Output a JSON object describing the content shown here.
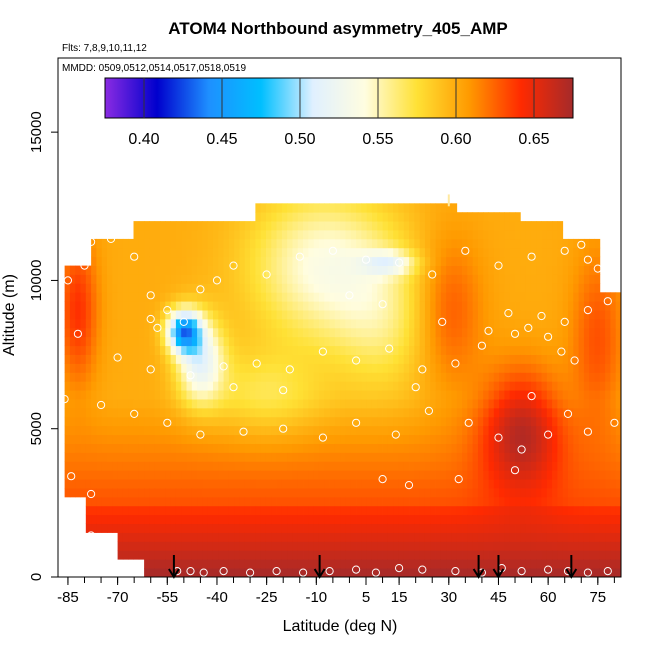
{
  "chart_data": {
    "type": "heatmap",
    "title": "ATOM4 Northbound asymmetry_405_AMP",
    "subtitle_flights": "Flts: 7,8,9,10,11,12",
    "subtitle_dates": "MMDD: 0509,0512,0514,0517,0518,0519",
    "xlabel": "Latitude (deg N)",
    "ylabel": "Altitude (m)",
    "xlim": [
      -88,
      82
    ],
    "ylim": [
      0,
      17500
    ],
    "x_ticks": [
      -85,
      -70,
      -55,
      -40,
      -25,
      -10,
      5,
      15,
      30,
      45,
      60,
      75
    ],
    "y_ticks": [
      0,
      5000,
      10000,
      15000
    ],
    "colorbar": {
      "range": [
        0.375,
        0.675
      ],
      "ticks": [
        0.4,
        0.45,
        0.5,
        0.55,
        0.6,
        0.65
      ],
      "tick_labels": [
        "0.40",
        "0.45",
        "0.50",
        "0.55",
        "0.60",
        "0.65"
      ],
      "colors": [
        "#8a2be2",
        "#0000cd",
        "#1e90ff",
        "#00bfff",
        "#e0f0ff",
        "#fffde0",
        "#ffe135",
        "#ff9a00",
        "#ff2a00",
        "#a52a2a"
      ]
    },
    "arrow_latitudes": [
      -53,
      -9,
      39,
      45,
      67
    ],
    "observation_points": [
      [
        -85,
        10000
      ],
      [
        -80,
        10500
      ],
      [
        -78,
        11300
      ],
      [
        -72,
        11400
      ],
      [
        -65,
        10800
      ],
      [
        -60,
        9500
      ],
      [
        -55,
        9000
      ],
      [
        -50,
        8600
      ],
      [
        -45,
        9700
      ],
      [
        -40,
        10000
      ],
      [
        -35,
        10500
      ],
      [
        -25,
        10200
      ],
      [
        -15,
        10800
      ],
      [
        -5,
        11000
      ],
      [
        5,
        10700
      ],
      [
        15,
        10600
      ],
      [
        25,
        10200
      ],
      [
        35,
        11000
      ],
      [
        45,
        10500
      ],
      [
        55,
        10800
      ],
      [
        65,
        11000
      ],
      [
        70,
        11200
      ],
      [
        72,
        10700
      ],
      [
        75,
        10400
      ],
      [
        -82,
        8200
      ],
      [
        -70,
        7400
      ],
      [
        -60,
        7000
      ],
      [
        -48,
        6800
      ],
      [
        -38,
        7100
      ],
      [
        -28,
        7200
      ],
      [
        -18,
        7000
      ],
      [
        -8,
        7600
      ],
      [
        2,
        7300
      ],
      [
        12,
        7700
      ],
      [
        22,
        7000
      ],
      [
        32,
        7200
      ],
      [
        40,
        7800
      ],
      [
        50,
        8200
      ],
      [
        58,
        8800
      ],
      [
        65,
        8600
      ],
      [
        72,
        9000
      ],
      [
        78,
        9300
      ],
      [
        -86,
        6000
      ],
      [
        -75,
        5800
      ],
      [
        -65,
        5500
      ],
      [
        -55,
        5200
      ],
      [
        -45,
        4800
      ],
      [
        -32,
        4900
      ],
      [
        -20,
        5000
      ],
      [
        -8,
        4700
      ],
      [
        2,
        5200
      ],
      [
        14,
        4800
      ],
      [
        24,
        5600
      ],
      [
        36,
        5200
      ],
      [
        45,
        4700
      ],
      [
        52,
        4300
      ],
      [
        60,
        4800
      ],
      [
        66,
        5500
      ],
      [
        72,
        4900
      ],
      [
        80,
        5200
      ],
      [
        -84,
        3400
      ],
      [
        -78,
        2800
      ],
      [
        10,
        3300
      ],
      [
        18,
        3100
      ],
      [
        33,
        3300
      ],
      [
        50,
        3600
      ],
      [
        -78,
        1400
      ],
      [
        -52,
        200
      ],
      [
        -48,
        200
      ],
      [
        -44,
        150
      ],
      [
        -38,
        200
      ],
      [
        -30,
        150
      ],
      [
        -22,
        200
      ],
      [
        -14,
        150
      ],
      [
        -6,
        200
      ],
      [
        2,
        250
      ],
      [
        8,
        150
      ],
      [
        15,
        300
      ],
      [
        22,
        250
      ],
      [
        32,
        200
      ],
      [
        40,
        150
      ],
      [
        46,
        300
      ],
      [
        52,
        200
      ],
      [
        60,
        250
      ],
      [
        66,
        200
      ],
      [
        72,
        150
      ],
      [
        78,
        200
      ],
      [
        -60,
        8700
      ],
      [
        -58,
        8400
      ],
      [
        0,
        9500
      ],
      [
        10,
        9200
      ],
      [
        28,
        8600
      ],
      [
        42,
        8300
      ],
      [
        48,
        8900
      ],
      [
        54,
        8400
      ],
      [
        60,
        8100
      ],
      [
        64,
        7600
      ],
      [
        68,
        7300
      ],
      [
        -35,
        6400
      ],
      [
        -20,
        6300
      ],
      [
        20,
        6400
      ],
      [
        55,
        6100
      ]
    ]
  }
}
